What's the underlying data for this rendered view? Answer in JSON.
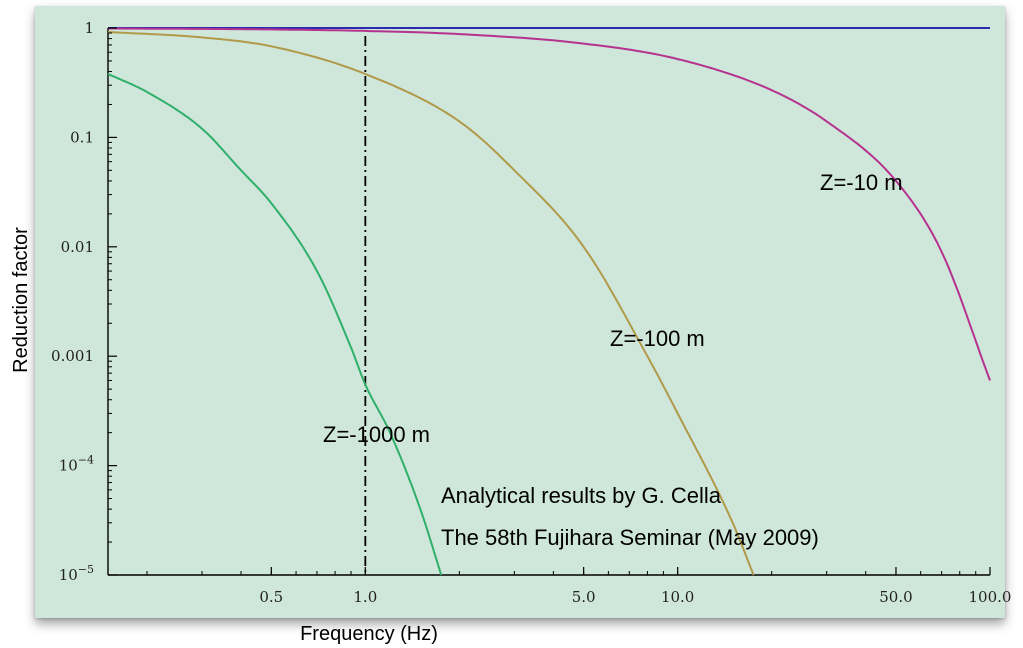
{
  "chart_data": {
    "type": "line",
    "xlabel": "Frequency (Hz)",
    "ylabel": "Reduction factor",
    "x_scale": "log",
    "y_scale": "log",
    "xlim": [
      0.15,
      100
    ],
    "ylim": [
      1e-05,
      1
    ],
    "x_ticks": [
      {
        "value": 0.5,
        "label": "0.5"
      },
      {
        "value": 1,
        "label": "1.0"
      },
      {
        "value": 5,
        "label": "5.0"
      },
      {
        "value": 10,
        "label": "10.0"
      },
      {
        "value": 50,
        "label": "50.0"
      },
      {
        "value": 100,
        "label": "100.0"
      }
    ],
    "y_ticks": [
      {
        "value": 1,
        "label": "1",
        "base": "",
        "exp": ""
      },
      {
        "value": 0.1,
        "label": "0.1",
        "base": "",
        "exp": ""
      },
      {
        "value": 0.01,
        "label": "0.01",
        "base": "",
        "exp": ""
      },
      {
        "value": 0.001,
        "label": "0.001",
        "base": "",
        "exp": ""
      },
      {
        "value": 0.0001,
        "label": "",
        "base": "10",
        "exp": "−4"
      },
      {
        "value": 1e-05,
        "label": "",
        "base": "10",
        "exp": "−5"
      }
    ],
    "series": [
      {
        "name": "",
        "color": "#2b2bb0",
        "points": [
          [
            0.15,
            1
          ],
          [
            1,
            1
          ],
          [
            10,
            1
          ],
          [
            100,
            1
          ]
        ]
      },
      {
        "name": "Z=-10 m",
        "color": "#b5338f",
        "points": [
          [
            0.15,
            0.99
          ],
          [
            0.5,
            0.97
          ],
          [
            1,
            0.94
          ],
          [
            2,
            0.88
          ],
          [
            5,
            0.72
          ],
          [
            10,
            0.52
          ],
          [
            20,
            0.27
          ],
          [
            30,
            0.14
          ],
          [
            50,
            0.04
          ],
          [
            70,
            0.009
          ],
          [
            100,
            0.0006
          ]
        ]
      },
      {
        "name": "Z=-100 m",
        "color": "#b09a4a",
        "points": [
          [
            0.15,
            0.92
          ],
          [
            0.3,
            0.82
          ],
          [
            0.5,
            0.68
          ],
          [
            1,
            0.38
          ],
          [
            2,
            0.14
          ],
          [
            3,
            0.05
          ],
          [
            5,
            0.01
          ],
          [
            8,
            0.001
          ],
          [
            10,
            0.0003
          ],
          [
            15,
            3e-05
          ],
          [
            17.5,
            1e-05
          ]
        ]
      },
      {
        "name": "Z=-1000 m",
        "color": "#2fb06a",
        "points": [
          [
            0.15,
            0.38
          ],
          [
            0.2,
            0.26
          ],
          [
            0.3,
            0.12
          ],
          [
            0.4,
            0.05
          ],
          [
            0.5,
            0.025
          ],
          [
            0.7,
            0.006
          ],
          [
            0.9,
            0.0012
          ],
          [
            1,
            0.00055
          ],
          [
            1.2,
            0.0002
          ],
          [
            1.5,
            4e-05
          ],
          [
            1.75,
            1e-05
          ]
        ]
      }
    ],
    "reference_line": {
      "x": 1,
      "style": "dash-dot",
      "color": "#000000"
    },
    "annotations": [
      {
        "text": "Z=-10 m",
        "color": "#b5338f"
      },
      {
        "text": "Z=-100 m",
        "color": "#f0b400"
      },
      {
        "text": "Z=-1000 m",
        "color": "#1ea64a"
      },
      {
        "text": "Analytical results by G. Cella",
        "color": "#7d2fc2"
      },
      {
        "text": "The 58th Fujihara Seminar (May 2009)",
        "color": "#7d2fc2"
      }
    ],
    "grid": false,
    "legend": "none"
  }
}
